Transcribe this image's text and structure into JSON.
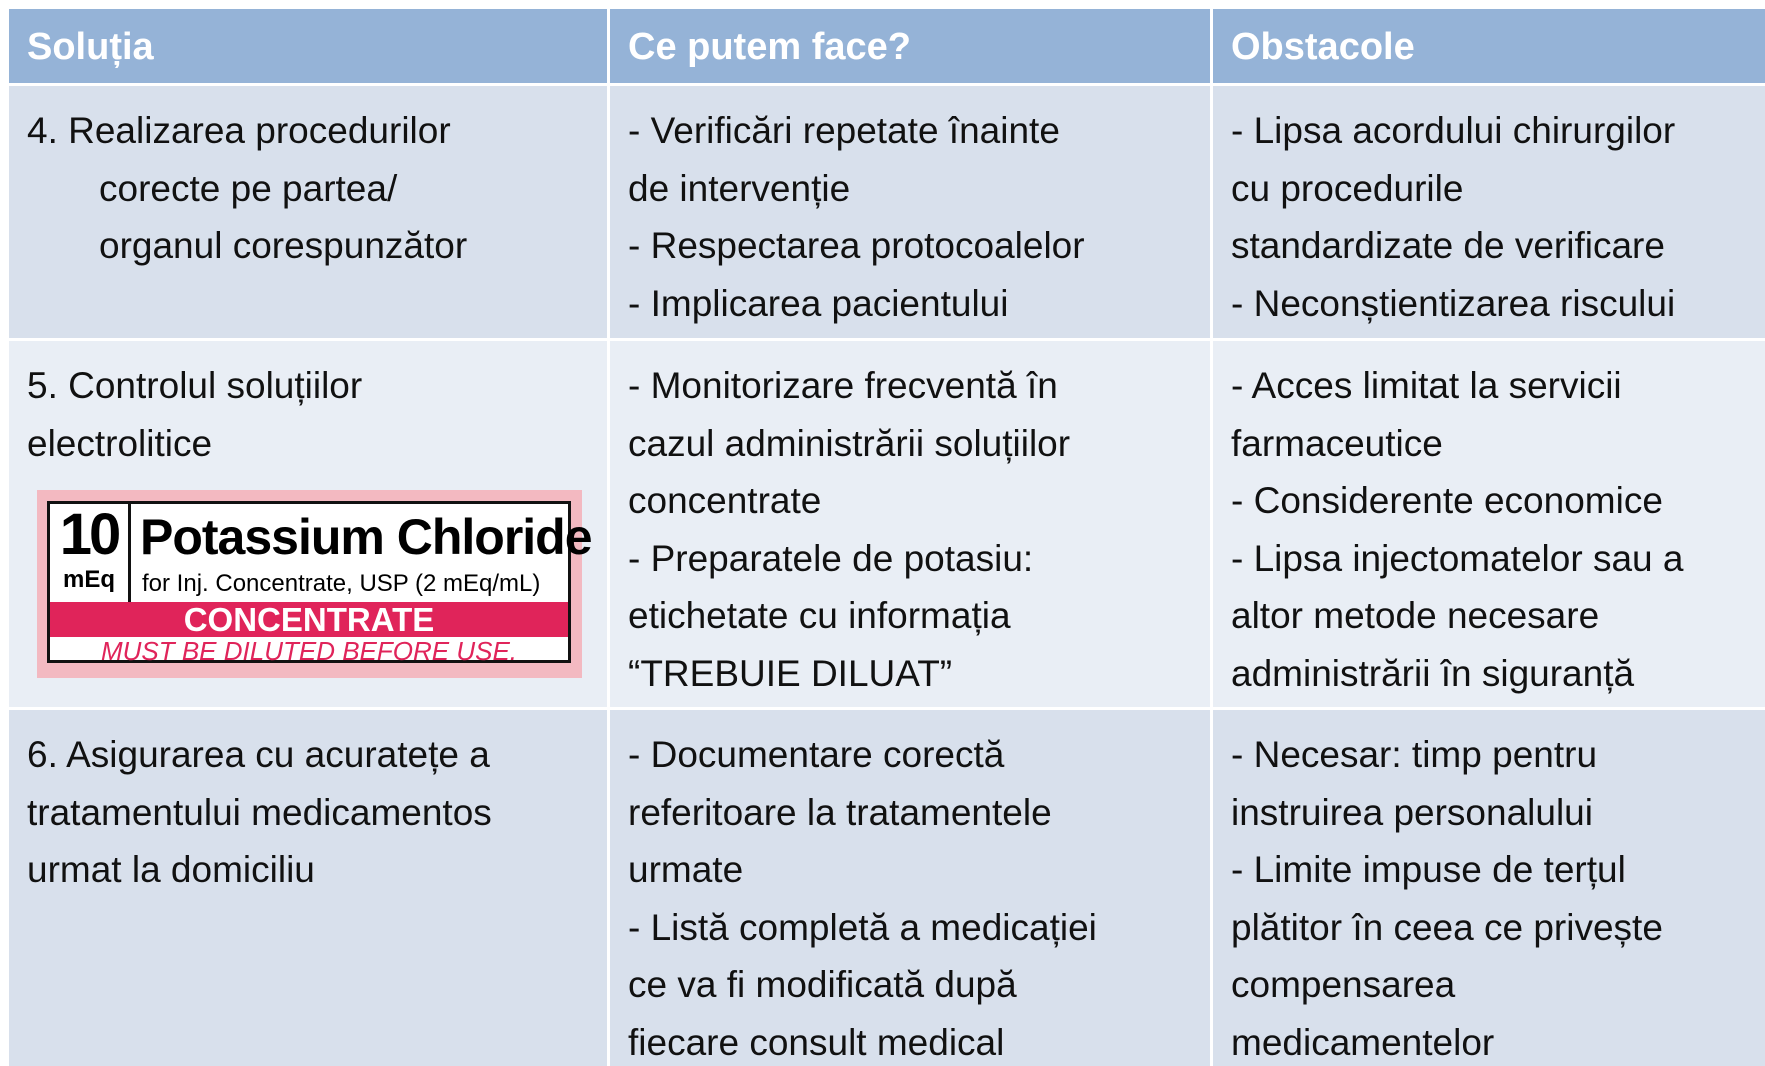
{
  "table": {
    "header": [
      "Soluția",
      "Ce putem face?",
      "Obstacole"
    ],
    "rows": [
      [
        [
          "4. Realizarea procedurilor",
          "corecte pe partea/",
          "organul corespunzător"
        ],
        [
          "-  Verificări repetate înainte",
          "de intervenție",
          "- Respectarea protocoalelor",
          "- Implicarea pacientului"
        ],
        [
          "- Lipsa acordului chirurgilor",
          "cu procedurile",
          "standardizate de verificare",
          "- Neconștientizarea riscului"
        ]
      ],
      [
        [
          "5. Controlul soluțiilor",
          "electrolitice"
        ],
        [
          "- Monitorizare frecventă în",
          "cazul administrării soluțiilor",
          "concentrate",
          "- Preparatele de potasiu:",
          "etichetate cu informația",
          "“TREBUIE DILUAT”"
        ],
        [
          "- Acces limitat la servicii",
          "farmaceutice",
          "- Considerente economice",
          "- Lipsa injectomatelor sau a",
          "altor metode necesare",
          "administrării în siguranță"
        ]
      ],
      [
        [
          "6. Asigurarea cu acuratețe a",
          "tratamentului medicamentos",
          "urmat la domiciliu"
        ],
        [
          "- Documentare corectă",
          "referitoare la tratamentele",
          "urmate",
          "- Listă completă a medicației",
          "ce va fi modificată după",
          "fiecare consult medical"
        ],
        [
          "- Necesar: timp pentru",
          "instruirea personalului",
          "- Limite impuse de terțul",
          "plătitor în ceea ce privește",
          "compensarea",
          "medicamentelor"
        ]
      ]
    ]
  },
  "label": {
    "number": "10",
    "unit": "mEq",
    "name": "Potassium Chloride",
    "subtitle": "for Inj. Concentrate, USP (2 mEq/mL)",
    "banner": "CONCENTRATE",
    "warning": "MUST BE  DILUTED BEFORE USE."
  }
}
